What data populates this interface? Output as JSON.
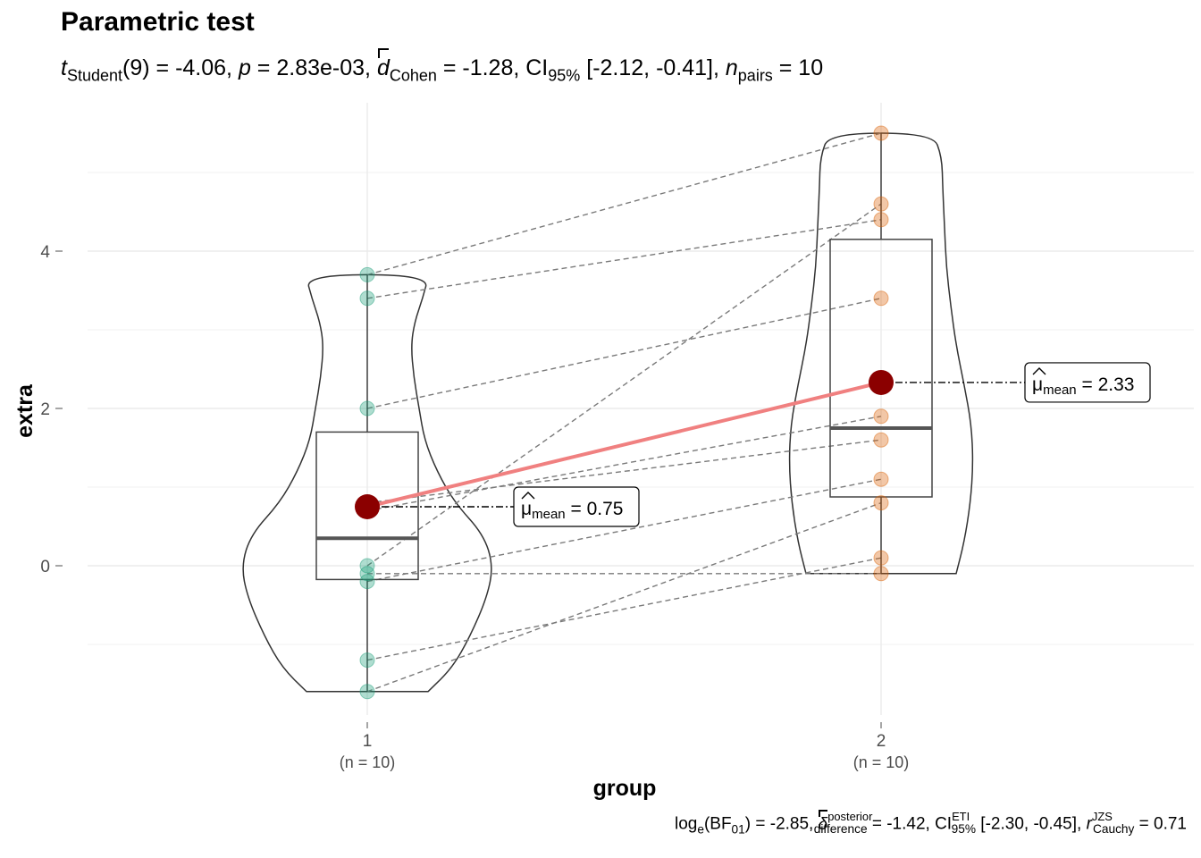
{
  "title": "Parametric test",
  "subtitle": {
    "t_label": "t",
    "t_sub": "Student",
    "df": "(9)",
    "t_value": " = -4.06, ",
    "p_label": "p",
    "p_value": " = 2.83e-03, ",
    "d_label": "d",
    "d_sub": "Cohen",
    "d_value": " = -1.28, CI",
    "ci_sub": "95%",
    "ci_value": " [-2.12, -0.41], ",
    "n_label": "n",
    "n_sub": "pairs",
    "n_value": " = 10"
  },
  "caption": {
    "log_text": "log",
    "log_sub": "e",
    "bf_text": "(BF",
    "bf_sub": "01",
    "bf_value": ") = -2.85, ",
    "delta": "δ",
    "delta_sup": "posterior",
    "delta_sub": "difference",
    "delta_value": " = -1.42, CI",
    "ci_sup": "ETI",
    "ci_sub": "95%",
    "ci_value": " [-2.30, -0.45], ",
    "r_label": "r",
    "r_sup": "JZS",
    "r_sub": "Cauchy",
    "r_value": " = 0.71"
  },
  "chart_data": {
    "type": "violin-box-paired",
    "xlabel": "group",
    "ylabel": "extra",
    "ylim": [
      -2.0,
      5.8
    ],
    "yticks": [
      0,
      2,
      4
    ],
    "grid": true,
    "categories": [
      {
        "label": "1",
        "n_label": "(n = 10)",
        "color": "#1b9e77"
      },
      {
        "label": "2",
        "n_label": "(n = 10)",
        "color": "#d95f02"
      }
    ],
    "pairs": [
      [
        0.7,
        1.9
      ],
      [
        -1.6,
        0.8
      ],
      [
        -0.2,
        1.1
      ],
      [
        -1.2,
        0.1
      ],
      [
        -0.1,
        -0.1
      ],
      [
        3.4,
        4.4
      ],
      [
        3.7,
        5.5
      ],
      [
        0.8,
        1.6
      ],
      [
        0.0,
        4.6
      ],
      [
        2.0,
        3.4
      ]
    ],
    "means": [
      0.75,
      2.33
    ],
    "mean_labels": [
      {
        "mu": "μ",
        "sub": "mean",
        "value": " = 0.75"
      },
      {
        "mu": "μ",
        "sub": "mean",
        "value": " = 2.33"
      }
    ],
    "boxplot": [
      {
        "q1": -0.175,
        "median": 0.35,
        "q3": 1.7,
        "whisker_low": -1.6,
        "whisker_high": 3.7
      },
      {
        "q1": 0.875,
        "median": 1.75,
        "q3": 4.15,
        "whisker_low": -0.1,
        "whisker_high": 5.5
      }
    ],
    "colors": {
      "mean_point": "#8b0000",
      "mean_line": "#f08080",
      "pair_line": "#7a7a7a",
      "grid": "#ebebeb"
    }
  }
}
